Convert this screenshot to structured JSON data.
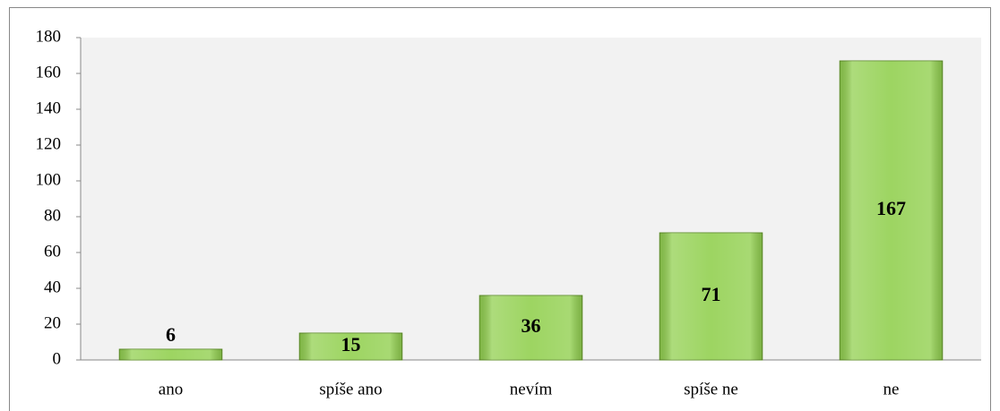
{
  "chart_data": {
    "type": "bar",
    "categories": [
      "ano",
      "spíše ano",
      "nevím",
      "spíše ne",
      "ne"
    ],
    "values": [
      6,
      15,
      36,
      71,
      167
    ],
    "color": "#92d050",
    "ylim": [
      0,
      180
    ],
    "yticks": [
      0,
      20,
      40,
      60,
      80,
      100,
      120,
      140,
      160,
      180
    ]
  }
}
